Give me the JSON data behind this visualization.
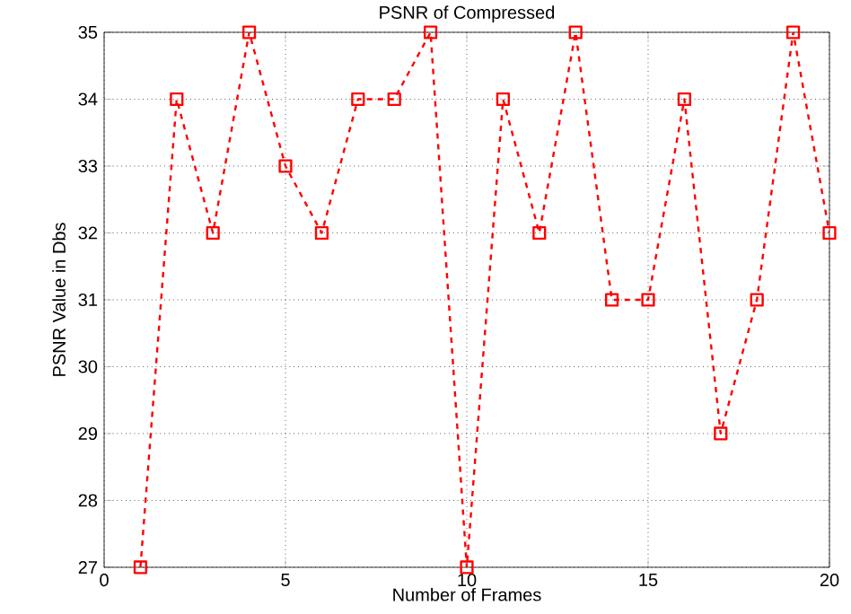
{
  "chart_data": {
    "type": "line",
    "title": "PSNR of Compressed",
    "xlabel": "Number of Frames",
    "ylabel": "PSNR Value in Dbs",
    "x": [
      1,
      2,
      3,
      4,
      5,
      6,
      7,
      8,
      9,
      10,
      11,
      12,
      13,
      14,
      15,
      16,
      17,
      18,
      19,
      20
    ],
    "series": [
      {
        "color": "#ff0000",
        "values": [
          27,
          34,
          32,
          35,
          33,
          32,
          34,
          34,
          35,
          27,
          34,
          32,
          35,
          31,
          31,
          34,
          29,
          31,
          35,
          32
        ]
      }
    ],
    "xlim": [
      0,
      20
    ],
    "xticks": [
      0,
      5,
      10,
      15,
      20
    ],
    "ylim": [
      27,
      35
    ],
    "yticks": [
      27,
      28,
      29,
      30,
      31,
      32,
      33,
      34,
      35
    ],
    "grid": true,
    "marker": "square",
    "line_style": "dashed"
  }
}
